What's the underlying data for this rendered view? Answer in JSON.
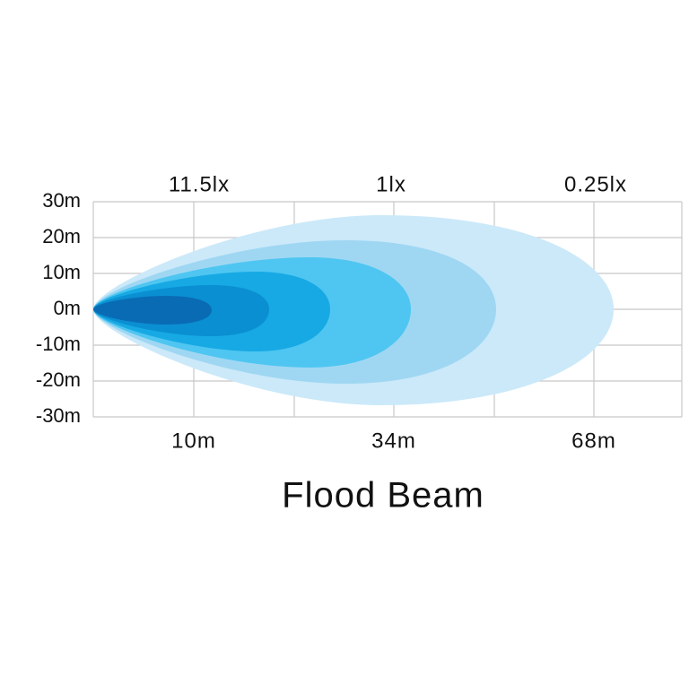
{
  "title": "Flood Beam",
  "lux_labels": [
    "11.5lx",
    "1lx",
    "0.25lx"
  ],
  "distance_labels": [
    "10m",
    "34m",
    "68m"
  ],
  "width_labels": [
    "30m",
    "20m",
    "10m",
    "0m",
    "-10m",
    "-20m",
    "-30m"
  ]
}
